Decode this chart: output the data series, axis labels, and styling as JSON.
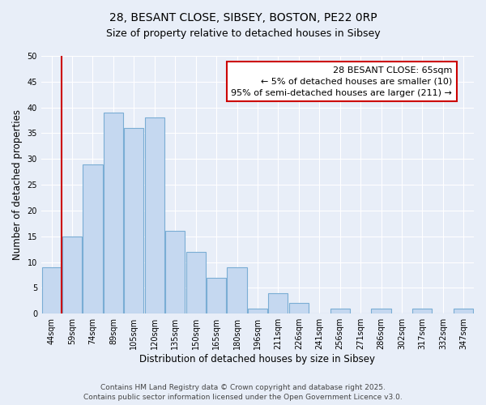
{
  "title": "28, BESANT CLOSE, SIBSEY, BOSTON, PE22 0RP",
  "subtitle": "Size of property relative to detached houses in Sibsey",
  "xlabel": "Distribution of detached houses by size in Sibsey",
  "ylabel": "Number of detached properties",
  "bar_labels": [
    "44sqm",
    "59sqm",
    "74sqm",
    "89sqm",
    "105sqm",
    "120sqm",
    "135sqm",
    "150sqm",
    "165sqm",
    "180sqm",
    "196sqm",
    "211sqm",
    "226sqm",
    "241sqm",
    "256sqm",
    "271sqm",
    "286sqm",
    "302sqm",
    "317sqm",
    "332sqm",
    "347sqm"
  ],
  "bar_values": [
    9,
    15,
    29,
    39,
    36,
    38,
    16,
    12,
    7,
    9,
    1,
    4,
    2,
    0,
    1,
    0,
    1,
    0,
    1,
    0,
    1
  ],
  "bar_color": "#c5d8f0",
  "bar_edge_color": "#7aadd4",
  "vline_x": 0.5,
  "vline_color": "#cc0000",
  "annotation_title": "28 BESANT CLOSE: 65sqm",
  "annotation_line1": "← 5% of detached houses are smaller (10)",
  "annotation_line2": "95% of semi-detached houses are larger (211) →",
  "annotation_box_color": "#ffffff",
  "annotation_box_edge": "#cc0000",
  "ylim": [
    0,
    50
  ],
  "yticks": [
    0,
    5,
    10,
    15,
    20,
    25,
    30,
    35,
    40,
    45,
    50
  ],
  "bg_color": "#e8eef8",
  "plot_bg_color": "#e8eef8",
  "footer1": "Contains HM Land Registry data © Crown copyright and database right 2025.",
  "footer2": "Contains public sector information licensed under the Open Government Licence v3.0.",
  "title_fontsize": 10,
  "subtitle_fontsize": 9,
  "axis_label_fontsize": 8.5,
  "tick_fontsize": 7,
  "annotation_fontsize": 8,
  "footer_fontsize": 6.5
}
